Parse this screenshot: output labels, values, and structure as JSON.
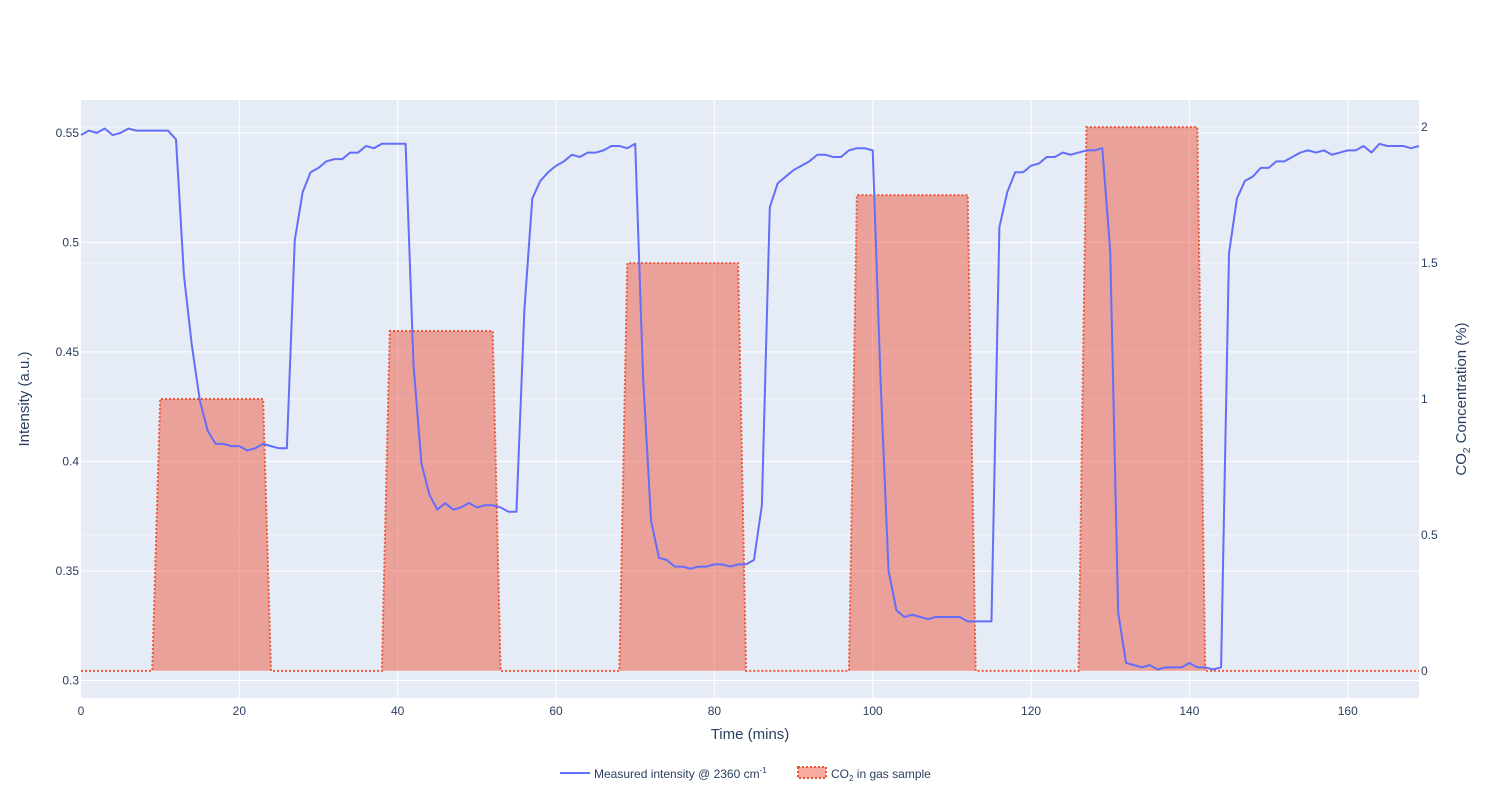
{
  "chart_data": {
    "type": "line",
    "title": "",
    "xlabel": "Time (mins)",
    "ylabel": "Intensity (a.u.)",
    "y2label": {
      "prefix": "CO",
      "sub": "2",
      "suffix": " Concentration (%)"
    },
    "xlim": [
      0,
      169
    ],
    "ylim": [
      0.292,
      0.565
    ],
    "y2lim": [
      -0.1,
      2.1
    ],
    "xticks": [
      0,
      20,
      40,
      60,
      80,
      100,
      120,
      140,
      160
    ],
    "yticks": [
      0.3,
      0.35,
      0.4,
      0.45,
      0.5,
      0.55
    ],
    "ytick_labels": [
      "0.3",
      "0.35",
      "0.4",
      "0.45",
      "0.5",
      "0.55"
    ],
    "y2ticks": [
      0,
      0.5,
      1,
      1.5,
      2
    ],
    "y2tick_labels": [
      "0",
      "0.5",
      "1",
      "1.5",
      "2"
    ],
    "grid": true,
    "legend_position": "bottom-center",
    "colors": {
      "plot_bg": "#e5ecf6",
      "grid": "#ffffff",
      "intensity": "#636efa",
      "co2_line": "#ef553b",
      "co2_fill": "rgba(239,85,59,0.5)",
      "text": "#2a3f5f"
    },
    "series": [
      {
        "name": "Measured intensity @ 2360 cm",
        "name_sup": "-1",
        "axis": "y",
        "style": "solid",
        "x": [
          0,
          1,
          2,
          3,
          4,
          5,
          6,
          7,
          8,
          9,
          10,
          11,
          12,
          13,
          14,
          15,
          16,
          17,
          18,
          19,
          20,
          21,
          22,
          23,
          24,
          25,
          26,
          27,
          28,
          29,
          30,
          31,
          32,
          33,
          34,
          35,
          36,
          37,
          38,
          39,
          40,
          41,
          42,
          43,
          44,
          45,
          46,
          47,
          48,
          49,
          50,
          51,
          52,
          53,
          54,
          55,
          56,
          57,
          58,
          59,
          60,
          61,
          62,
          63,
          64,
          65,
          66,
          67,
          68,
          69,
          70,
          71,
          72,
          73,
          74,
          75,
          76,
          77,
          78,
          79,
          80,
          81,
          82,
          83,
          84,
          85,
          86,
          87,
          88,
          89,
          90,
          91,
          92,
          93,
          94,
          95,
          96,
          97,
          98,
          99,
          100,
          101,
          102,
          103,
          104,
          105,
          106,
          107,
          108,
          109,
          110,
          111,
          112,
          113,
          114,
          115,
          116,
          117,
          118,
          119,
          120,
          121,
          122,
          123,
          124,
          125,
          126,
          127,
          128,
          129,
          130,
          131,
          132,
          133,
          134,
          135,
          136,
          137,
          138,
          139,
          140,
          141,
          142,
          143,
          144,
          145,
          146,
          147,
          148,
          149,
          150,
          151,
          152,
          153,
          154,
          155,
          156,
          157,
          158,
          159,
          160,
          161,
          162,
          163,
          164,
          165,
          166,
          167,
          168,
          169
        ],
        "y": [
          0.549,
          0.551,
          0.55,
          0.552,
          0.549,
          0.55,
          0.552,
          0.551,
          0.551,
          0.551,
          0.551,
          0.551,
          0.547,
          0.485,
          0.453,
          0.428,
          0.414,
          0.408,
          0.408,
          0.407,
          0.407,
          0.405,
          0.406,
          0.408,
          0.407,
          0.406,
          0.406,
          0.501,
          0.523,
          0.532,
          0.534,
          0.537,
          0.538,
          0.538,
          0.541,
          0.541,
          0.544,
          0.543,
          0.545,
          0.545,
          0.545,
          0.545,
          0.444,
          0.399,
          0.385,
          0.378,
          0.381,
          0.378,
          0.379,
          0.381,
          0.379,
          0.38,
          0.38,
          0.379,
          0.377,
          0.377,
          0.469,
          0.52,
          0.528,
          0.532,
          0.535,
          0.537,
          0.54,
          0.539,
          0.541,
          0.541,
          0.542,
          0.544,
          0.544,
          0.543,
          0.545,
          0.438,
          0.373,
          0.356,
          0.355,
          0.352,
          0.352,
          0.351,
          0.352,
          0.352,
          0.353,
          0.353,
          0.352,
          0.353,
          0.353,
          0.355,
          0.38,
          0.516,
          0.527,
          0.53,
          0.533,
          0.535,
          0.537,
          0.54,
          0.54,
          0.539,
          0.539,
          0.542,
          0.543,
          0.543,
          0.542,
          0.436,
          0.35,
          0.332,
          0.329,
          0.33,
          0.329,
          0.328,
          0.329,
          0.329,
          0.329,
          0.329,
          0.327,
          0.327,
          0.327,
          0.327,
          0.507,
          0.523,
          0.532,
          0.532,
          0.535,
          0.536,
          0.539,
          0.539,
          0.541,
          0.54,
          0.541,
          0.542,
          0.542,
          0.543,
          0.496,
          0.331,
          0.308,
          0.307,
          0.306,
          0.307,
          0.305,
          0.306,
          0.306,
          0.306,
          0.308,
          0.306,
          0.306,
          0.305,
          0.306,
          0.495,
          0.52,
          0.528,
          0.53,
          0.534,
          0.534,
          0.537,
          0.537,
          0.539,
          0.541,
          0.542,
          0.541,
          0.542,
          0.54,
          0.541,
          0.542,
          0.542,
          0.544,
          0.541,
          0.545,
          0.544,
          0.544,
          0.544,
          0.543,
          0.544
        ]
      },
      {
        "name": "CO",
        "name_sub": "2",
        "name_suffix": " in gas sample",
        "axis": "y2",
        "style": "dotted-fill",
        "x": [
          0,
          9,
          10,
          23,
          24,
          38,
          39,
          52,
          53,
          68,
          69,
          83,
          84,
          97,
          98,
          112,
          113,
          126,
          127,
          141,
          142,
          169
        ],
        "y": [
          0,
          0,
          1,
          1,
          0,
          0,
          1.25,
          1.25,
          0,
          0,
          1.5,
          1.5,
          0,
          0,
          1.75,
          1.75,
          0,
          0,
          2,
          2,
          0,
          0
        ]
      }
    ]
  }
}
